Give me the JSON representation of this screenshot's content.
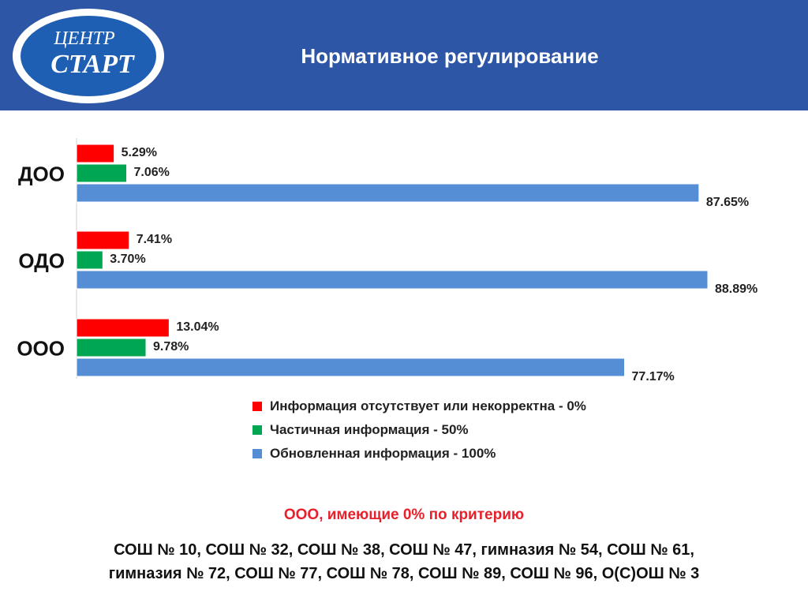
{
  "header": {
    "logo_line1": "ЦЕНТР",
    "logo_line2": "СТАРТ",
    "title": "Нормативное регулирование"
  },
  "colors": {
    "header_bg": "#2e56a6",
    "missing": "#ff0000",
    "partial": "#00a651",
    "updated": "#558ed5",
    "subtitle": "#e8202b"
  },
  "chart_data": {
    "type": "bar",
    "orientation": "horizontal",
    "categories": [
      "ДОО",
      "ОДО",
      "ООО"
    ],
    "series": [
      {
        "name": "Информация отсутствует или некорректна - 0%",
        "color": "#ff0000",
        "values": [
          5.29,
          7.41,
          13.04
        ],
        "labels": [
          "5.29%",
          "7.41%",
          "13.04%"
        ]
      },
      {
        "name": "Частичная информация - 50%",
        "color": "#00a651",
        "values": [
          7.06,
          3.7,
          9.78
        ],
        "labels": [
          "7.06%",
          "3.70%",
          "9.78%"
        ]
      },
      {
        "name": "Обновленная информация - 100%",
        "color": "#558ed5",
        "values": [
          87.65,
          88.89,
          77.17
        ],
        "labels": [
          "87.65%",
          "88.89%",
          "77.17%"
        ]
      }
    ],
    "xlim": [
      0,
      100
    ],
    "grid": false,
    "legend": "bottom"
  },
  "subtitle": "ООО, имеющие 0% по критерию",
  "schools": {
    "line1": "СОШ № 10, СОШ № 32, СОШ № 38, СОШ № 47, гимназия № 54, СОШ № 61,",
    "line2": "гимназия № 72, СОШ № 77, СОШ № 78, СОШ № 89, СОШ № 96, О(С)ОШ № 3"
  }
}
